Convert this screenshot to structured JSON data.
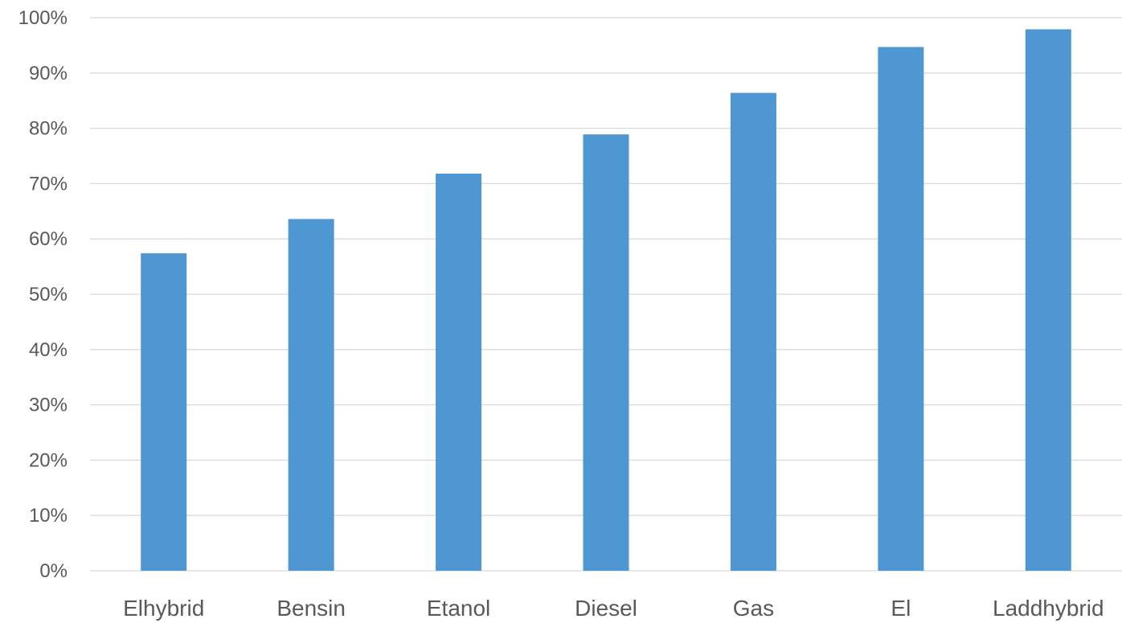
{
  "chart_data": {
    "type": "bar",
    "title": "",
    "xlabel": "",
    "ylabel": "",
    "categories": [
      "Elhybrid",
      "Bensin",
      "Etanol",
      "Diesel",
      "Gas",
      "El",
      "Laddhybrid"
    ],
    "series": [
      {
        "values": [
          57.4,
          63.6,
          71.8,
          78.9,
          86.4,
          94.7,
          97.9
        ],
        "color": "#4f97d3"
      }
    ],
    "ylim": [
      0,
      100
    ],
    "y_ticks": [
      0,
      10,
      20,
      30,
      40,
      50,
      60,
      70,
      80,
      90,
      100
    ],
    "y_tick_labels": [
      "0%",
      "10%",
      "20%",
      "30%",
      "40%",
      "50%",
      "60%",
      "70%",
      "80%",
      "90%",
      "100%"
    ],
    "grid": true,
    "legend": "none"
  }
}
